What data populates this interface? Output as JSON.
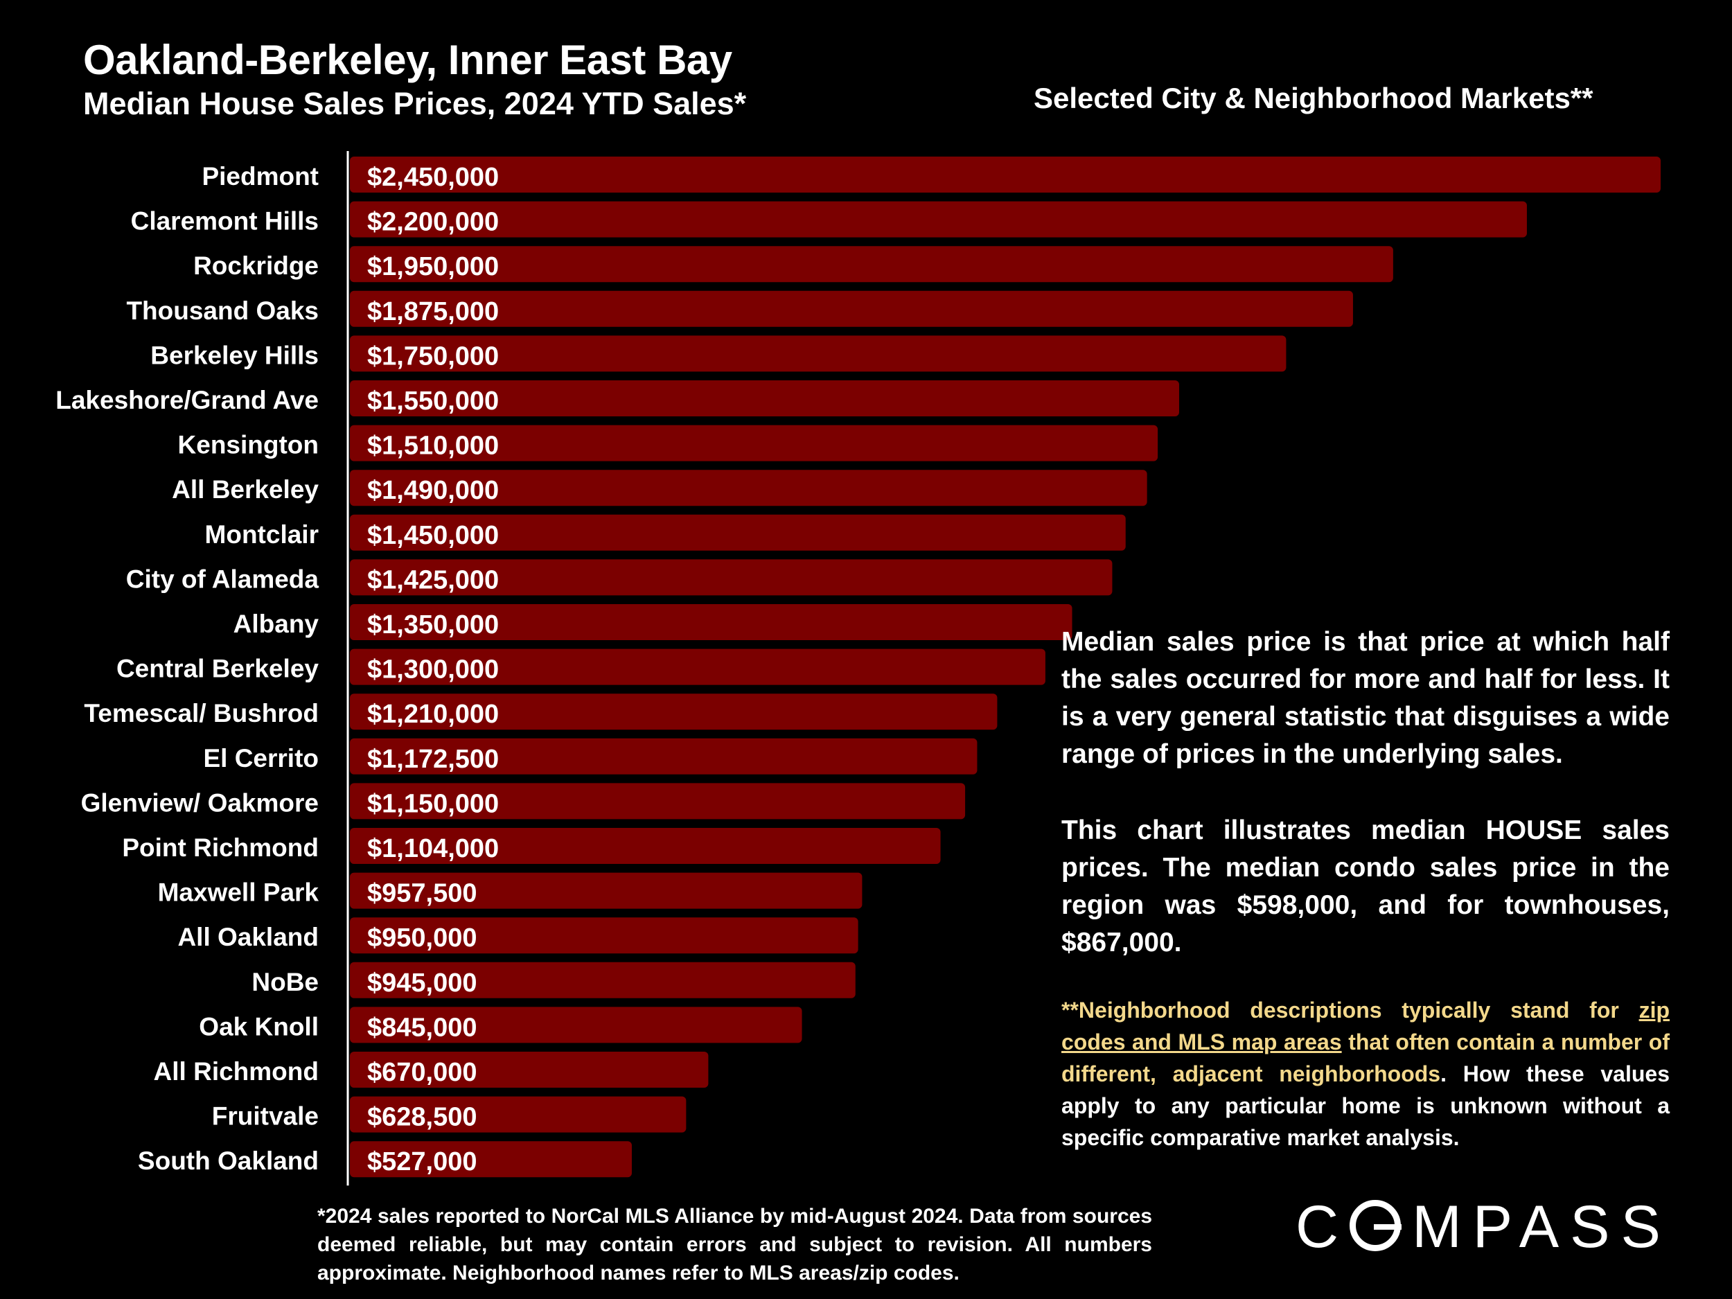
{
  "header": {
    "title": "Oakland-Berkeley, Inner East Bay",
    "subtitle": "Median House Sales Prices, 2024 YTD Sales*",
    "right_heading": "Selected City & Neighborhood Markets**"
  },
  "colors": {
    "bar": "#7b0000",
    "background": "#000000",
    "highlight": "#f3d88b"
  },
  "chart_data": {
    "type": "bar",
    "orientation": "horizontal",
    "title": "Median House Sales Prices, 2024 YTD Sales*",
    "xlabel": "",
    "ylabel": "",
    "xlim": [
      0,
      2450000
    ],
    "grid": false,
    "categories": [
      "Piedmont",
      "Claremont Hills",
      "Rockridge",
      "Thousand Oaks",
      "Berkeley Hills",
      "Lakeshore/Grand Ave",
      "Kensington",
      "All Berkeley",
      "Montclair",
      "City of Alameda",
      "Albany",
      "Central Berkeley",
      "Temescal/ Bushrod",
      "El Cerrito",
      "Glenview/ Oakmore",
      "Point Richmond",
      "Maxwell Park",
      "All Oakland",
      "NoBe",
      "Oak Knoll",
      "All Richmond",
      "Fruitvale",
      "South Oakland"
    ],
    "values": [
      2450000,
      2200000,
      1950000,
      1875000,
      1750000,
      1550000,
      1510000,
      1490000,
      1450000,
      1425000,
      1350000,
      1300000,
      1210000,
      1172500,
      1150000,
      1104000,
      957500,
      950000,
      945000,
      845000,
      670000,
      628500,
      527000
    ],
    "labels": [
      "$2,450,000",
      "$2,200,000",
      "$1,950,000",
      "$1,875,000",
      "$1,750,000",
      "$1,550,000",
      "$1,510,000",
      "$1,490,000",
      "$1,450,000",
      "$1,425,000",
      "$1,350,000",
      "$1,300,000",
      "$1,210,000",
      "$1,172,500",
      "$1,150,000",
      "$1,104,000",
      "$957,500",
      "$950,000",
      "$945,000",
      "$845,000",
      "$670,000",
      "$628,500",
      "$527,000"
    ]
  },
  "notes": {
    "median_definition": "Median sales price is that price at which half the sales occurred for more and half for less. It is a very general statistic that disguises a wide range of prices in the underlying sales.",
    "house_note": "This chart illustrates median HOUSE sales prices. The median condo sales price in the region was $598,000, and for townhouses, $867,000.",
    "neighborhood_note": {
      "part1": "**Neighborhood descriptions typically stand for ",
      "link": "zip codes and MLS map areas",
      "part2": " that often contain a number of different, adjacent neighborhoods",
      "part3": ". How these values apply to any particular home is unknown without a specific comparative market analysis."
    }
  },
  "footnote": "*2024 sales reported to NorCal MLS Alliance by mid-August 2024. Data from sources deemed reliable, but may contain errors and subject to revision. All numbers approximate. Neighborhood names refer to MLS areas/zip codes.",
  "logo": {
    "text": "COMPASS",
    "rest": "MPASS",
    "first_letter": "C"
  }
}
